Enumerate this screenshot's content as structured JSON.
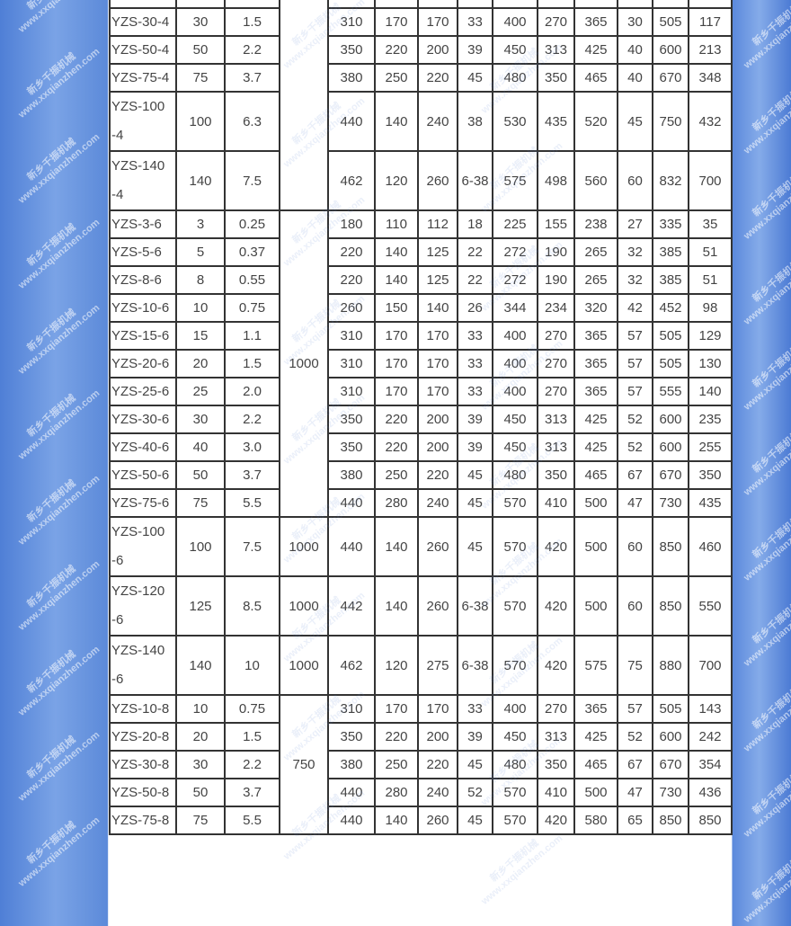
{
  "watermark": {
    "cn": "新乡千振机械",
    "url": "www.xxqianzhen.com"
  },
  "groups": [
    {
      "speed": "",
      "rows": [
        [
          "",
          "",
          "",
          "",
          "",
          "",
          "",
          "",
          "",
          "",
          "",
          "",
          ""
        ],
        [
          "YZS-30-4",
          "30",
          "1.5",
          "310",
          "170",
          "170",
          "33",
          "400",
          "270",
          "365",
          "30",
          "505",
          "117"
        ],
        [
          "YZS-50-4",
          "50",
          "2.2",
          "350",
          "220",
          "200",
          "39",
          "450",
          "313",
          "425",
          "40",
          "600",
          "213"
        ],
        [
          "YZS-75-4",
          "75",
          "3.7",
          "380",
          "250",
          "220",
          "45",
          "480",
          "350",
          "465",
          "40",
          "670",
          "348"
        ],
        [
          "YZS-100-4",
          "100",
          "6.3",
          "440",
          "140",
          "240",
          "38",
          "530",
          "435",
          "520",
          "45",
          "750",
          "432"
        ],
        [
          "YZS-140-4",
          "140",
          "7.5",
          "462",
          "120",
          "260",
          "6-38",
          "575",
          "498",
          "560",
          "60",
          "832",
          "700"
        ]
      ]
    },
    {
      "speed": "1000",
      "rows": [
        [
          "YZS-3-6",
          "3",
          "0.25",
          "180",
          "110",
          "112",
          "18",
          "225",
          "155",
          "238",
          "27",
          "335",
          "35"
        ],
        [
          "YZS-5-6",
          "5",
          "0.37",
          "220",
          "140",
          "125",
          "22",
          "272",
          "190",
          "265",
          "32",
          "385",
          "51"
        ],
        [
          "YZS-8-6",
          "8",
          "0.55",
          "220",
          "140",
          "125",
          "22",
          "272",
          "190",
          "265",
          "32",
          "385",
          "51"
        ],
        [
          "YZS-10-6",
          "10",
          "0.75",
          "260",
          "150",
          "140",
          "26",
          "344",
          "234",
          "320",
          "42",
          "452",
          "98"
        ],
        [
          "YZS-15-6",
          "15",
          "1.1",
          "310",
          "170",
          "170",
          "33",
          "400",
          "270",
          "365",
          "57",
          "505",
          "129"
        ],
        [
          "YZS-20-6",
          "20",
          "1.5",
          "310",
          "170",
          "170",
          "33",
          "400",
          "270",
          "365",
          "57",
          "505",
          "130"
        ],
        [
          "YZS-25-6",
          "25",
          "2.0",
          "310",
          "170",
          "170",
          "33",
          "400",
          "270",
          "365",
          "57",
          "555",
          "140"
        ],
        [
          "YZS-30-6",
          "30",
          "2.2",
          "350",
          "220",
          "200",
          "39",
          "450",
          "313",
          "425",
          "52",
          "600",
          "235"
        ],
        [
          "YZS-40-6",
          "40",
          "3.0",
          "350",
          "220",
          "200",
          "39",
          "450",
          "313",
          "425",
          "52",
          "600",
          "255"
        ],
        [
          "YZS-50-6",
          "50",
          "3.7",
          "380",
          "250",
          "220",
          "45",
          "480",
          "350",
          "465",
          "67",
          "670",
          "350"
        ],
        [
          "YZS-75-6",
          "75",
          "5.5",
          "440",
          "280",
          "240",
          "45",
          "570",
          "410",
          "500",
          "47",
          "730",
          "435"
        ]
      ]
    },
    {
      "speed": "1000",
      "rows": [
        [
          "YZS-100-6",
          "100",
          "7.5",
          "440",
          "140",
          "260",
          "45",
          "570",
          "420",
          "500",
          "60",
          "850",
          "460"
        ]
      ]
    },
    {
      "speed": "1000",
      "rows": [
        [
          "YZS-120-6",
          "125",
          "8.5",
          "442",
          "140",
          "260",
          "6-38",
          "570",
          "420",
          "500",
          "60",
          "850",
          "550"
        ]
      ]
    },
    {
      "speed": "1000",
      "rows": [
        [
          "YZS-140-6",
          "140",
          "10",
          "462",
          "120",
          "275",
          "6-38",
          "570",
          "420",
          "575",
          "75",
          "880",
          "700"
        ]
      ]
    },
    {
      "speed": "750",
      "rows": [
        [
          "YZS-10-8",
          "10",
          "0.75",
          "310",
          "170",
          "170",
          "33",
          "400",
          "270",
          "365",
          "57",
          "505",
          "143"
        ],
        [
          "YZS-20-8",
          "20",
          "1.5",
          "350",
          "220",
          "200",
          "39",
          "450",
          "313",
          "425",
          "52",
          "600",
          "242"
        ],
        [
          "YZS-30-8",
          "30",
          "2.2",
          "380",
          "250",
          "220",
          "45",
          "480",
          "350",
          "465",
          "67",
          "670",
          "354"
        ],
        [
          "YZS-50-8",
          "50",
          "3.7",
          "440",
          "280",
          "240",
          "52",
          "570",
          "410",
          "500",
          "47",
          "730",
          "436"
        ],
        [
          "YZS-75-8",
          "75",
          "5.5",
          "440",
          "140",
          "260",
          "45",
          "570",
          "420",
          "580",
          "65",
          "850",
          "850"
        ]
      ]
    }
  ]
}
